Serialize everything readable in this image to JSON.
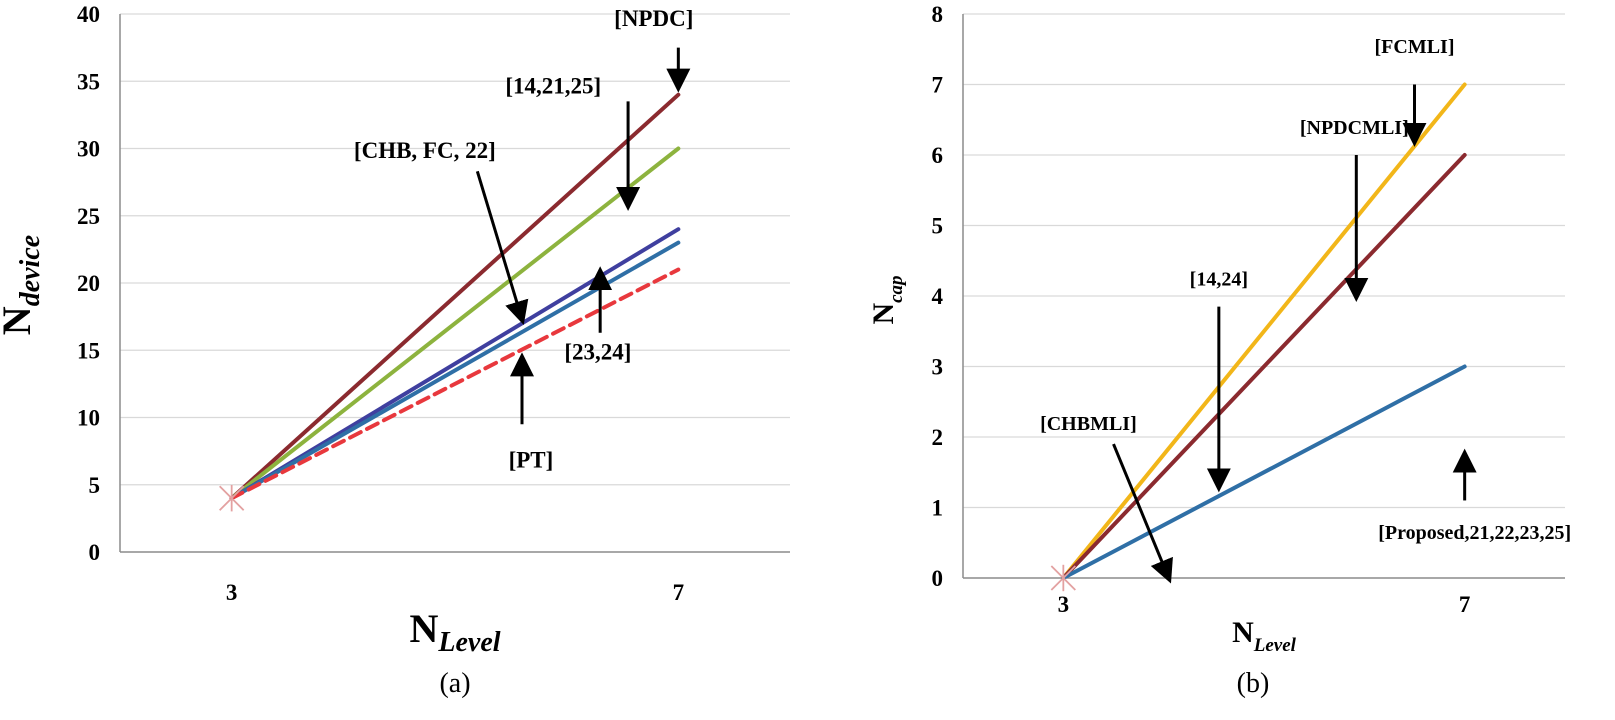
{
  "chart_data": [
    {
      "id": "a",
      "type": "line",
      "caption": "(a)",
      "ylabel_main": "N",
      "ylabel_sub": "device",
      "xlabel_main": "N",
      "xlabel_sub": "Level",
      "ylim": [
        0,
        40
      ],
      "yticks": [
        "0",
        "5",
        "10",
        "15",
        "20",
        "25",
        "30",
        "35",
        "40"
      ],
      "ytick_values": [
        0,
        5,
        10,
        15,
        20,
        25,
        30,
        35,
        40
      ],
      "x": [
        3,
        7
      ],
      "xticks": [
        "3",
        "7"
      ],
      "grid": true,
      "series": [
        {
          "name": "NPDC",
          "values": [
            4,
            34
          ],
          "color": "#8b2a2f",
          "dash": false
        },
        {
          "name": "14,21,25",
          "values": [
            4,
            30
          ],
          "color": "#8db33e",
          "dash": false
        },
        {
          "name": "CHB, FC, 22",
          "values": [
            4,
            24
          ],
          "color": "#3f3f9f",
          "dash": false
        },
        {
          "name": "23,24",
          "values": [
            4,
            23
          ],
          "color": "#2f6fa6",
          "dash": false
        },
        {
          "name": "PT",
          "values": [
            4,
            21
          ],
          "color": "#e8383d",
          "dash": true
        }
      ],
      "marker": {
        "x": 3,
        "y": 4,
        "color": "#e3a1a1"
      },
      "annotations": [
        {
          "text": "[NPDC]",
          "pos": [
            6.78,
            39.1
          ],
          "arrow_from": [
            7.0,
            37.5
          ],
          "arrow_to": [
            7.0,
            34.6
          ]
        },
        {
          "text": "[14,21,25]",
          "pos": [
            5.88,
            34.1
          ],
          "arrow_from": [
            6.55,
            33.5
          ],
          "arrow_to": [
            6.55,
            25.8
          ]
        },
        {
          "text": "[CHB, FC, 22]",
          "pos": [
            4.73,
            29.3
          ],
          "arrow_from": [
            5.2,
            28.3
          ],
          "arrow_to": [
            5.6,
            17.3
          ]
        },
        {
          "text": "[23,24]",
          "pos": [
            6.28,
            14.3
          ],
          "arrow_from": [
            6.3,
            16.3
          ],
          "arrow_to": [
            6.3,
            20.8
          ]
        },
        {
          "text": "[PT]",
          "pos": [
            5.68,
            6.3
          ],
          "arrow_from": [
            5.6,
            9.5
          ],
          "arrow_to": [
            5.6,
            14.4
          ]
        }
      ]
    },
    {
      "id": "b",
      "type": "line",
      "caption": "(b)",
      "ylabel_main": "N",
      "ylabel_sub": "cap",
      "xlabel_main": "N",
      "xlabel_sub": "Level",
      "ylim": [
        0,
        8
      ],
      "yticks": [
        "0",
        "1",
        "2",
        "3",
        "4",
        "5",
        "6",
        "7",
        "8"
      ],
      "ytick_values": [
        0,
        1,
        2,
        3,
        4,
        5,
        6,
        7,
        8
      ],
      "x": [
        3,
        7
      ],
      "xticks": [
        "3",
        "7"
      ],
      "grid": true,
      "series": [
        {
          "name": "FCMLI",
          "values": [
            0,
            7
          ],
          "color": "#f2b619",
          "dash": false
        },
        {
          "name": "NPDCMLI",
          "values": [
            0,
            6
          ],
          "color": "#8b2a2f",
          "dash": false
        },
        {
          "name": "Proposed,21,22,23,25",
          "values": [
            0,
            3
          ],
          "color": "#2f6fa6",
          "dash": false
        }
      ],
      "marker": {
        "x": 3,
        "y": 0,
        "color": "#e3a1a1"
      },
      "annotations": [
        {
          "text": "[FCMLI]",
          "pos": [
            6.5,
            7.45
          ],
          "arrow_from": [
            6.5,
            7.0
          ],
          "arrow_to": [
            6.5,
            6.2
          ]
        },
        {
          "text": "[NPDCMLI]",
          "pos": [
            5.9,
            6.3
          ],
          "arrow_from": [
            5.92,
            6.0
          ],
          "arrow_to": [
            5.92,
            4.0
          ]
        },
        {
          "text": "[14,24]",
          "pos": [
            4.55,
            4.15
          ],
          "arrow_from": [
            4.55,
            3.85
          ],
          "arrow_to": [
            4.55,
            1.3
          ]
        },
        {
          "text": "[CHBMLI]",
          "pos": [
            3.25,
            2.1
          ],
          "arrow_from": [
            3.5,
            1.9
          ],
          "arrow_to": [
            4.05,
            0.0
          ]
        },
        {
          "text": "[Proposed,21,22,23,25]",
          "pos": [
            7.1,
            0.55
          ],
          "arrow_from": [
            7.0,
            1.1
          ],
          "arrow_to": [
            7.0,
            1.75
          ]
        }
      ]
    }
  ]
}
